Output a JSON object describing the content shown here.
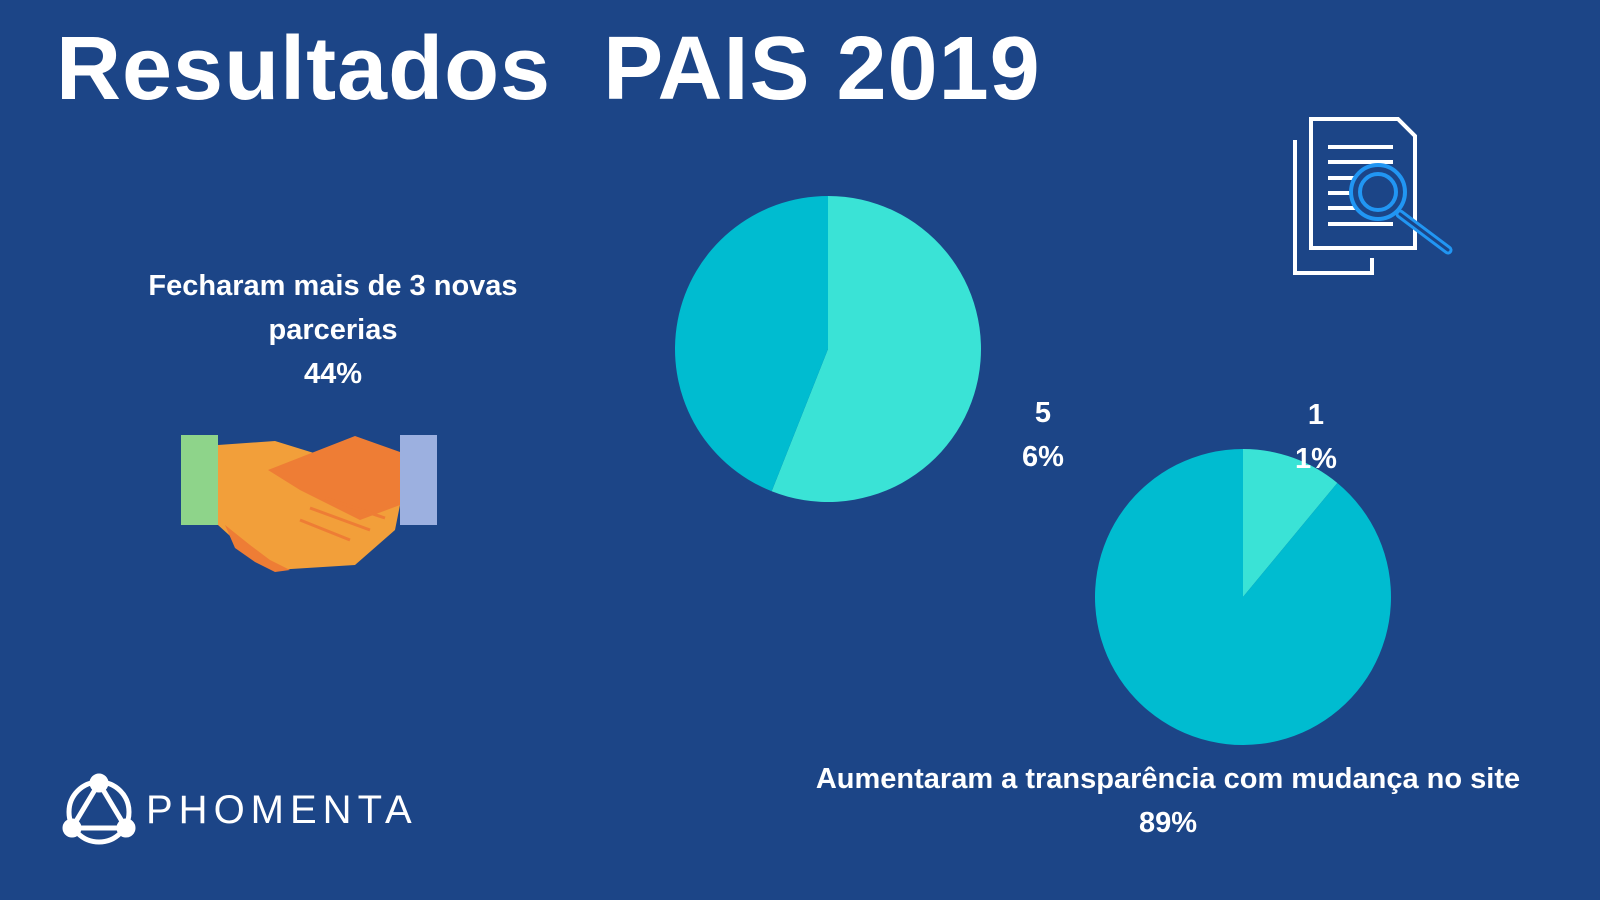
{
  "title": "Resultados  PAIS 2019",
  "brand": "PHOMENTA",
  "chart_data": [
    {
      "type": "pie",
      "title": "Fecharam mais de 3 novas parcerias",
      "values": [
        56,
        44
      ],
      "value_labels": [
        "56%",
        "44%"
      ],
      "colors": [
        "#3ae3d6",
        "#00bcd0"
      ]
    },
    {
      "type": "pie",
      "title": "Aumentaram a transparência com mudança no site",
      "values": [
        11,
        89
      ],
      "value_labels": [
        "11%",
        "89%"
      ],
      "colors": [
        "#3ae3d6",
        "#00bcd0"
      ]
    }
  ]
}
